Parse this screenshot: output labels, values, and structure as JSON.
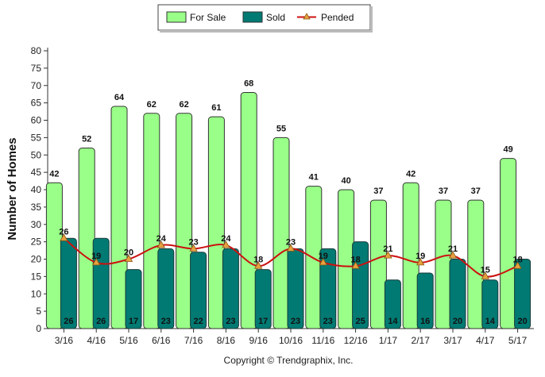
{
  "chart_data": {
    "type": "bar",
    "categories": [
      "3/16",
      "4/16",
      "5/16",
      "6/16",
      "7/16",
      "8/16",
      "9/16",
      "10/16",
      "11/16",
      "12/16",
      "1/17",
      "2/17",
      "3/17",
      "4/17",
      "5/17"
    ],
    "series": [
      {
        "name": "For Sale",
        "kind": "bar",
        "color": "#99ff88",
        "values": [
          42,
          52,
          64,
          62,
          62,
          61,
          68,
          55,
          41,
          40,
          37,
          42,
          37,
          37,
          49
        ]
      },
      {
        "name": "Sold",
        "kind": "bar",
        "color": "#007a73",
        "values": [
          26,
          26,
          17,
          23,
          22,
          23,
          17,
          23,
          23,
          25,
          14,
          16,
          20,
          14,
          20
        ]
      },
      {
        "name": "Pended",
        "kind": "line",
        "color": "#cc1111",
        "marker_color": "#e8a040",
        "values": [
          26,
          19,
          20,
          24,
          23,
          24,
          18,
          23,
          19,
          18,
          21,
          19,
          21,
          15,
          18
        ]
      }
    ],
    "ylabel": "Number of Homes",
    "xlabel": "",
    "ylim": [
      0,
      80
    ],
    "yticks": [
      0,
      5,
      10,
      15,
      20,
      25,
      30,
      35,
      40,
      45,
      50,
      55,
      60,
      65,
      70,
      75,
      80
    ],
    "legend_position": "top-center",
    "grid": false
  },
  "footer": "Copyright © Trendgraphix, Inc."
}
